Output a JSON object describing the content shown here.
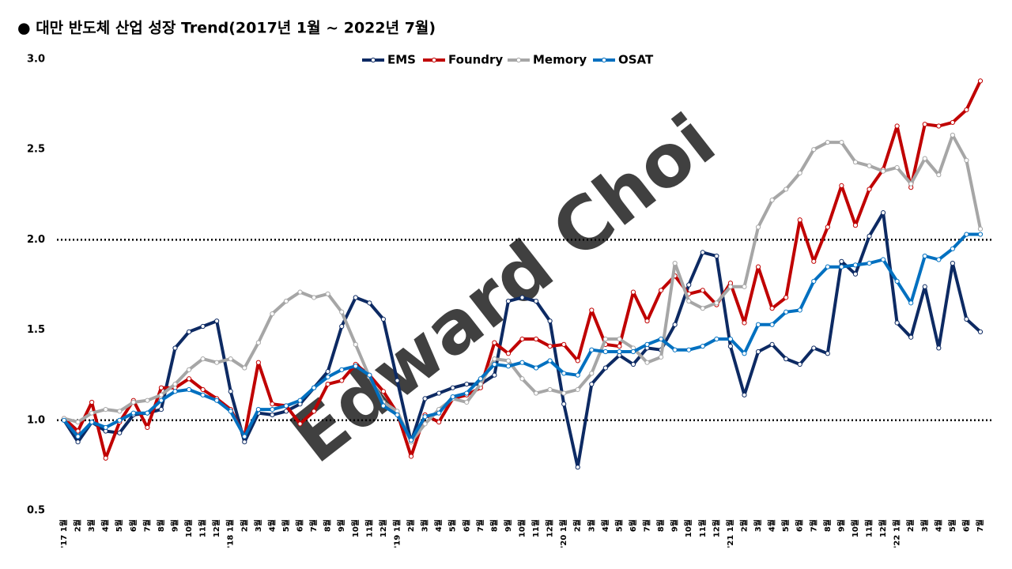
{
  "chart_data": {
    "type": "line",
    "title": "● 대만 반도체 산업 성장 Trend(2017년 1월 ~ 2022년 7월)",
    "watermark": "Edward Choi",
    "categories": [
      "'17 1월",
      "2월",
      "3월",
      "4월",
      "5월",
      "6월",
      "7월",
      "8월",
      "9월",
      "10월",
      "11월",
      "12월",
      "'18 1월",
      "2월",
      "3월",
      "4월",
      "5월",
      "6월",
      "7월",
      "8월",
      "9월",
      "10월",
      "11월",
      "12월",
      "'19 1월",
      "2월",
      "3월",
      "4월",
      "5월",
      "6월",
      "7월",
      "8월",
      "9월",
      "10월",
      "11월",
      "12월",
      "'20 1월",
      "2월",
      "3월",
      "4월",
      "5월",
      "6월",
      "7월",
      "8월",
      "9월",
      "10월",
      "11월",
      "12월",
      "'21 1월",
      "2월",
      "3월",
      "4월",
      "5월",
      "6월",
      "7월",
      "8월",
      "9월",
      "10월",
      "11월",
      "12월",
      "'22 1월",
      "2월",
      "3월",
      "4월",
      "5월",
      "6월",
      "7월"
    ],
    "series": [
      {
        "name": "EMS",
        "color": "#0d2a63",
        "values": [
          1.0,
          0.88,
          0.99,
          0.94,
          0.93,
          1.03,
          1.04,
          1.06,
          1.4,
          1.49,
          1.52,
          1.55,
          1.16,
          0.88,
          1.04,
          1.03,
          1.05,
          1.09,
          1.18,
          1.27,
          1.52,
          1.68,
          1.65,
          1.56,
          1.22,
          0.88,
          1.12,
          1.15,
          1.18,
          1.2,
          1.2,
          1.25,
          1.66,
          1.68,
          1.66,
          1.55,
          1.09,
          0.74,
          1.2,
          1.29,
          1.36,
          1.31,
          1.4,
          1.39,
          1.53,
          1.75,
          1.93,
          1.91,
          1.41,
          1.14,
          1.38,
          1.42,
          1.34,
          1.31,
          1.4,
          1.37,
          1.88,
          1.81,
          2.02,
          2.15,
          1.54,
          1.46,
          1.74,
          1.4,
          1.87,
          1.56,
          1.49
        ]
      },
      {
        "name": "Foundry",
        "color": "#c00000",
        "values": [
          1.01,
          0.94,
          1.1,
          0.79,
          0.99,
          1.11,
          0.96,
          1.18,
          1.18,
          1.23,
          1.17,
          1.12,
          1.06,
          0.91,
          1.32,
          1.09,
          1.08,
          0.98,
          1.05,
          1.2,
          1.22,
          1.31,
          1.25,
          1.16,
          1.04,
          0.8,
          1.03,
          0.99,
          1.12,
          1.14,
          1.18,
          1.43,
          1.37,
          1.45,
          1.45,
          1.41,
          1.42,
          1.33,
          1.61,
          1.42,
          1.41,
          1.71,
          1.55,
          1.72,
          1.8,
          1.7,
          1.72,
          1.64,
          1.76,
          1.54,
          1.85,
          1.62,
          1.68,
          2.11,
          1.88,
          2.07,
          2.3,
          2.08,
          2.28,
          2.39,
          2.63,
          2.29,
          2.64,
          2.63,
          2.65,
          2.72,
          2.88
        ]
      },
      {
        "name": "Memory",
        "color": "#a6a6a6",
        "values": [
          1.01,
          0.99,
          1.04,
          1.06,
          1.05,
          1.1,
          1.11,
          1.14,
          1.2,
          1.28,
          1.34,
          1.32,
          1.34,
          1.29,
          1.43,
          1.59,
          1.66,
          1.71,
          1.68,
          1.7,
          1.6,
          1.42,
          1.24,
          1.1,
          1.05,
          0.88,
          0.98,
          1.06,
          1.12,
          1.1,
          1.2,
          1.34,
          1.33,
          1.23,
          1.15,
          1.17,
          1.15,
          1.17,
          1.26,
          1.45,
          1.45,
          1.4,
          1.32,
          1.35,
          1.87,
          1.66,
          1.62,
          1.65,
          1.74,
          1.74,
          2.07,
          2.22,
          2.28,
          2.37,
          2.5,
          2.54,
          2.54,
          2.43,
          2.41,
          2.38,
          2.4,
          2.31,
          2.45,
          2.36,
          2.58,
          2.44,
          2.06
        ]
      },
      {
        "name": "OSAT",
        "color": "#0070c0",
        "values": [
          1.0,
          0.91,
          0.99,
          0.96,
          1.0,
          1.04,
          1.04,
          1.11,
          1.16,
          1.17,
          1.14,
          1.11,
          1.05,
          0.91,
          1.06,
          1.06,
          1.08,
          1.11,
          1.18,
          1.24,
          1.28,
          1.3,
          1.25,
          1.08,
          1.03,
          0.89,
          1.02,
          1.04,
          1.13,
          1.15,
          1.23,
          1.31,
          1.3,
          1.32,
          1.29,
          1.33,
          1.26,
          1.25,
          1.39,
          1.38,
          1.38,
          1.38,
          1.42,
          1.45,
          1.39,
          1.39,
          1.41,
          1.45,
          1.45,
          1.37,
          1.53,
          1.53,
          1.6,
          1.61,
          1.77,
          1.85,
          1.85,
          1.86,
          1.87,
          1.89,
          1.77,
          1.65,
          1.91,
          1.89,
          1.95,
          2.03,
          2.03
        ]
      }
    ],
    "ylim": [
      0.5,
      3.0
    ],
    "yticks": [
      0.5,
      {
        "value": 1.0,
        "label": "1.0"
      },
      1.5,
      {
        "value": 2.0,
        "label": "2.0"
      },
      2.5,
      {
        "value": 3.0,
        "label": "3.0"
      }
    ],
    "reference_lines": [
      1,
      2
    ],
    "legend": "top"
  }
}
